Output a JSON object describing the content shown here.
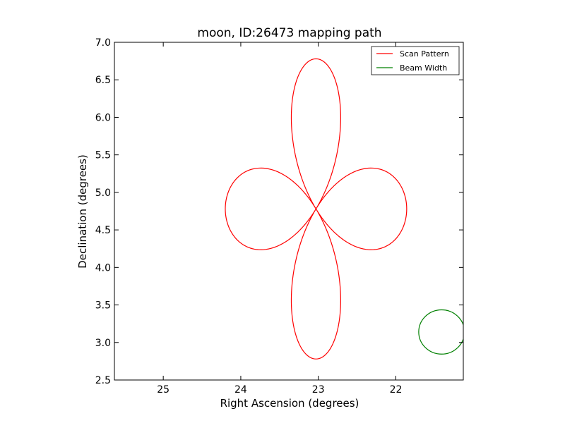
{
  "chart_data": {
    "type": "line",
    "title": "moon, ID:26473 mapping path",
    "xlabel": "Right Ascension (degrees)",
    "ylabel": "Declination (degrees)",
    "xlim": [
      25.63,
      21.13
    ],
    "ylim": [
      2.5,
      7.0
    ],
    "x_inverted": true,
    "xticks": [
      25,
      24,
      23,
      22
    ],
    "yticks": [
      "2.5",
      "3.0",
      "3.5",
      "4.0",
      "4.5",
      "5.0",
      "5.5",
      "6.0",
      "6.5",
      "7.0"
    ],
    "grid": false,
    "legend_position": "top-right",
    "series": [
      {
        "name": "Scan Pattern",
        "color": "#ff0000",
        "center": {
          "ra": 23.03,
          "dec": 4.78
        },
        "radial_amplitude_ra_deg": 1.17,
        "radial_amplitude_dec_deg": 2.0,
        "petals": 4
      },
      {
        "name": "Beam Width",
        "color": "#008000",
        "center": {
          "ra": 21.41,
          "dec": 3.14
        },
        "radius_deg": 0.295
      }
    ]
  }
}
